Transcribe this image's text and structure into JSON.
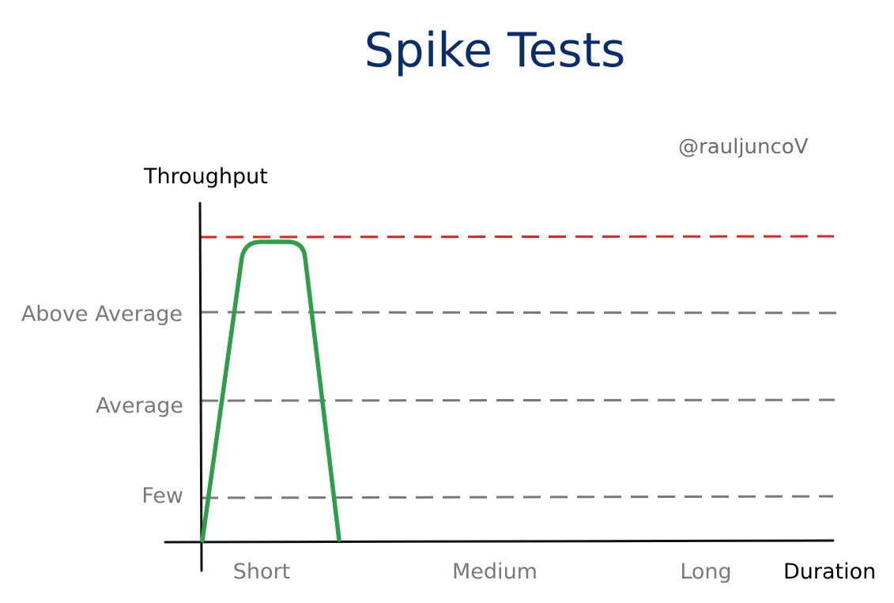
{
  "title": "Spike Tests",
  "watermark": "@rauljuncoV",
  "y_axis_title": "Throughput",
  "x_axis_title": "Duration",
  "levels": [
    {
      "label": "Few"
    },
    {
      "label": "Average"
    },
    {
      "label": "Above Average"
    }
  ],
  "durations": [
    {
      "label": "Short"
    },
    {
      "label": "Medium"
    },
    {
      "label": "Long"
    }
  ],
  "colors": {
    "title": "#0b2e6b",
    "axis": "#111111",
    "level_line": "#7d7878",
    "limit_line": "#e0241b",
    "curve": "#2e9e49",
    "label": "#7d7878"
  },
  "icons": []
}
